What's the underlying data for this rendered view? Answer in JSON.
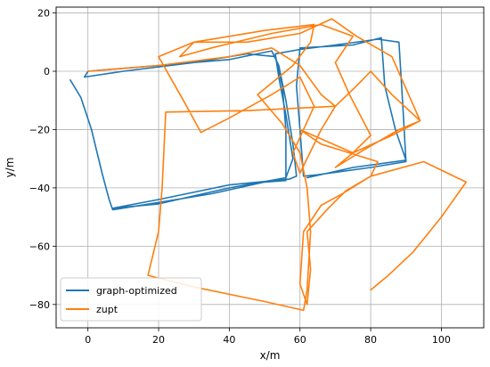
{
  "chart_data": {
    "type": "line",
    "title": "",
    "xlabel": "x/m",
    "ylabel": "y/m",
    "xlim": [
      -9,
      112
    ],
    "ylim": [
      -88,
      22
    ],
    "xticks": [
      0,
      20,
      40,
      60,
      80,
      100
    ],
    "yticks": [
      -80,
      -60,
      -40,
      -20,
      0,
      20
    ],
    "grid": true,
    "legend_position": "lower-left",
    "series": [
      {
        "name": "graph-optimized",
        "color": "#1f77b4",
        "points": [
          [
            -5,
            -3
          ],
          [
            -2,
            -9
          ],
          [
            1,
            -20
          ],
          [
            4,
            -35
          ],
          [
            6,
            -44
          ],
          [
            7,
            -47.5
          ],
          [
            20,
            -45
          ],
          [
            35,
            -42
          ],
          [
            50,
            -38
          ],
          [
            56,
            -37.5
          ],
          [
            56,
            -20
          ],
          [
            55,
            -5
          ],
          [
            53,
            5
          ],
          [
            45,
            6
          ],
          [
            30,
            3
          ],
          [
            10,
            0
          ],
          [
            -1,
            -2
          ],
          [
            0,
            0
          ],
          [
            20,
            2
          ],
          [
            40,
            4
          ],
          [
            52,
            7
          ],
          [
            54,
            2
          ],
          [
            56,
            -10
          ],
          [
            58,
            -25
          ],
          [
            59,
            -36
          ],
          [
            57,
            -37
          ],
          [
            40,
            -39
          ],
          [
            20,
            -44
          ],
          [
            7,
            -47
          ],
          [
            20,
            -45.5
          ],
          [
            40,
            -40
          ],
          [
            56,
            -36.5
          ],
          [
            58,
            -30
          ],
          [
            56,
            -15
          ],
          [
            54,
            -2
          ],
          [
            53,
            6
          ],
          [
            60,
            7.5
          ],
          [
            70,
            9
          ],
          [
            82,
            11
          ],
          [
            88,
            10
          ],
          [
            89,
            -10
          ],
          [
            90,
            -31
          ],
          [
            80,
            -33
          ],
          [
            65,
            -35.5
          ],
          [
            61,
            -36
          ],
          [
            60,
            -20
          ],
          [
            59,
            -5
          ],
          [
            60,
            8
          ],
          [
            75,
            9
          ],
          [
            83,
            11.5
          ],
          [
            84,
            -5
          ],
          [
            87,
            -20
          ],
          [
            90,
            -30.5
          ],
          [
            75,
            -33
          ],
          [
            62,
            -36.5
          ]
        ]
      },
      {
        "name": "zupt",
        "color": "#ff7f0e",
        "points": [
          [
            0,
            0
          ],
          [
            20,
            2
          ],
          [
            40,
            5
          ],
          [
            52,
            8
          ],
          [
            60,
            2
          ],
          [
            66,
            -8
          ],
          [
            70,
            -12
          ],
          [
            45,
            -13.5
          ],
          [
            22,
            -14
          ],
          [
            21,
            -40
          ],
          [
            20,
            -55
          ],
          [
            17,
            -70
          ],
          [
            30,
            -74
          ],
          [
            50,
            -79
          ],
          [
            61,
            -82
          ],
          [
            62,
            -75
          ],
          [
            63,
            -55
          ],
          [
            62,
            -40
          ],
          [
            60,
            -28
          ],
          [
            55,
            -18
          ],
          [
            48,
            -8
          ],
          [
            58,
            2
          ],
          [
            63,
            10
          ],
          [
            64,
            16
          ],
          [
            50,
            14
          ],
          [
            30,
            10
          ],
          [
            20,
            5
          ],
          [
            27,
            -10
          ],
          [
            32,
            -21
          ],
          [
            40,
            -16
          ],
          [
            52,
            -8
          ],
          [
            60,
            -2
          ],
          [
            64,
            -12
          ],
          [
            58,
            -28
          ],
          [
            60,
            -35
          ],
          [
            66,
            -20
          ],
          [
            70,
            -12
          ],
          [
            76,
            -5
          ],
          [
            80,
            0
          ],
          [
            86,
            -8
          ],
          [
            94,
            -17
          ],
          [
            88,
            -20
          ],
          [
            78,
            -27
          ],
          [
            70,
            -33
          ],
          [
            75,
            -28
          ],
          [
            80,
            -22
          ],
          [
            74,
            -8
          ],
          [
            70,
            3
          ],
          [
            75,
            12
          ],
          [
            66,
            16
          ],
          [
            52,
            13
          ],
          [
            35,
            8
          ],
          [
            26,
            5
          ],
          [
            30,
            10
          ],
          [
            45,
            10
          ],
          [
            60,
            13
          ],
          [
            69,
            18
          ],
          [
            76,
            12
          ],
          [
            86,
            5
          ],
          [
            94,
            -17
          ],
          [
            86,
            -22
          ],
          [
            75,
            -28
          ],
          [
            60,
            -20
          ],
          [
            66,
            -25
          ],
          [
            82,
            -31
          ],
          [
            80,
            -36
          ],
          [
            72,
            -42
          ],
          [
            66,
            -46
          ],
          [
            61,
            -55
          ],
          [
            60,
            -73
          ],
          [
            62,
            -80
          ],
          [
            63,
            -68
          ],
          [
            62,
            -55
          ],
          [
            68,
            -47
          ],
          [
            73,
            -41
          ],
          [
            80,
            -36
          ],
          [
            95,
            -31
          ],
          [
            107,
            -38
          ],
          [
            100,
            -50
          ],
          [
            92,
            -62
          ],
          [
            85,
            -70
          ],
          [
            80,
            -75
          ]
        ]
      }
    ]
  }
}
